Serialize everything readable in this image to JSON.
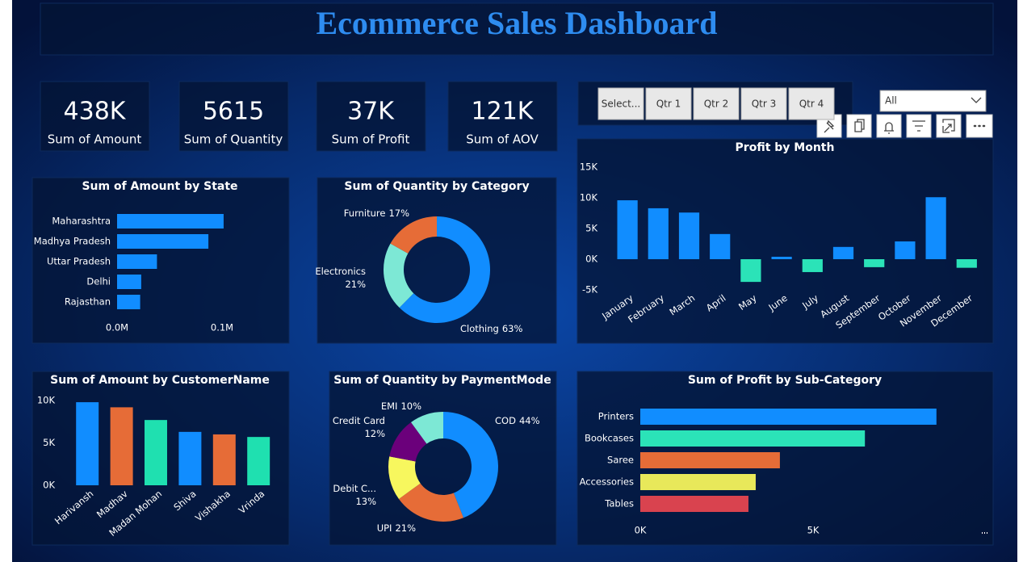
{
  "title": "Ecommerce Sales Dashboard",
  "kpis": [
    {
      "value": "438K",
      "label": "Sum of Amount"
    },
    {
      "value": "5615",
      "label": "Sum of Quantity"
    },
    {
      "value": "37K",
      "label": "Sum of Profit"
    },
    {
      "value": "121K",
      "label": "Sum of AOV"
    }
  ],
  "slicer": {
    "buttons": [
      "Select...",
      "Qtr 1",
      "Qtr 2",
      "Qtr 3",
      "Qtr 4"
    ],
    "dropdown": "All"
  },
  "chart_data": [
    {
      "type": "hbar",
      "title": "Sum of Amount by State",
      "categories": [
        "Maharashtra",
        "Madhya Pradesh",
        "Uttar Pradesh",
        "Delhi",
        "Rajasthan"
      ],
      "values": [
        0.1015,
        0.087,
        0.038,
        0.023,
        0.022
      ],
      "color": "#118DFF",
      "xlim": [
        0,
        0.11
      ],
      "xticks": [
        {
          "value": 0,
          "label": "0.0M"
        },
        {
          "value": 0.1,
          "label": "0.1M"
        }
      ]
    },
    {
      "type": "donut",
      "title": "Sum of Quantity by Category",
      "categories": [
        "Clothing",
        "Electronics",
        "Furniture"
      ],
      "values": [
        63,
        21,
        17
      ],
      "value_labels": [
        "63%",
        "21%",
        "17%"
      ],
      "colors": [
        "#118DFF",
        "#7DE8D5",
        "#E66C37"
      ]
    },
    {
      "type": "bar",
      "title": "Profit by Month",
      "categories": [
        "January",
        "February",
        "March",
        "April",
        "May",
        "June",
        "July",
        "August",
        "September",
        "October",
        "November",
        "December"
      ],
      "values": [
        9600,
        8300,
        7600,
        4100,
        -3700,
        400,
        -2100,
        2000,
        -1300,
        2900,
        10100,
        -1400
      ],
      "color": "#118DFF",
      "negative_color": "#2BE3B8",
      "ylim": [
        -5000,
        15000
      ],
      "yticks": [
        {
          "value": -5000,
          "label": "-5K"
        },
        {
          "value": 0,
          "label": "0K"
        },
        {
          "value": 5000,
          "label": "5K"
        },
        {
          "value": 10000,
          "label": "10K"
        },
        {
          "value": 15000,
          "label": "15K"
        }
      ]
    },
    {
      "type": "bar",
      "title": "Sum of Amount by CustomerName",
      "categories": [
        "Harivansh",
        "Madhav",
        "Madan Mohan",
        "Shiva",
        "Vishakha",
        "Vrinda"
      ],
      "values": [
        9800,
        9200,
        7700,
        6300,
        6000,
        5700
      ],
      "colors": [
        "#118DFF",
        "#E66C37",
        "#1FE0B0",
        "#118DFF",
        "#E66C37",
        "#1FE0B0"
      ],
      "ylim": [
        0,
        10000
      ],
      "yticks": [
        {
          "value": 0,
          "label": "0K"
        },
        {
          "value": 5000,
          "label": "5K"
        },
        {
          "value": 10000,
          "label": "10K"
        }
      ]
    },
    {
      "type": "donut",
      "title": "Sum of Quantity by PaymentMode",
      "categories": [
        "COD",
        "UPI",
        "Debit C...",
        "Credit Card",
        "EMI"
      ],
      "values": [
        44,
        21,
        13,
        12,
        10
      ],
      "value_labels": [
        "44%",
        "21%",
        "13%",
        "12%",
        "10%"
      ],
      "colors": [
        "#118DFF",
        "#E66C37",
        "#F7F75E",
        "#6B007B",
        "#7DE8D5"
      ]
    },
    {
      "type": "hbar",
      "title": "Sum of Profit by Sub-Category",
      "categories": [
        "Printers",
        "Bookcases",
        "Saree",
        "Accessories",
        "Tables"
      ],
      "values": [
        8570,
        6500,
        4040,
        3340,
        3130
      ],
      "colors": [
        "#118DFF",
        "#2BE3B8",
        "#E66C37",
        "#E8E85A",
        "#D9434F"
      ],
      "xlim": [
        0,
        10000
      ],
      "xticks": [
        {
          "value": 0,
          "label": "0K"
        },
        {
          "value": 5000,
          "label": "5K"
        }
      ]
    }
  ]
}
